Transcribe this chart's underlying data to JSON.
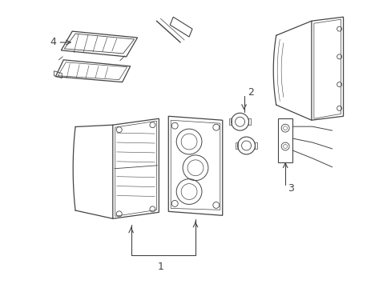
{
  "bg_color": "#ffffff",
  "line_color": "#444444",
  "figsize": [
    4.89,
    3.6
  ],
  "dpi": 100
}
